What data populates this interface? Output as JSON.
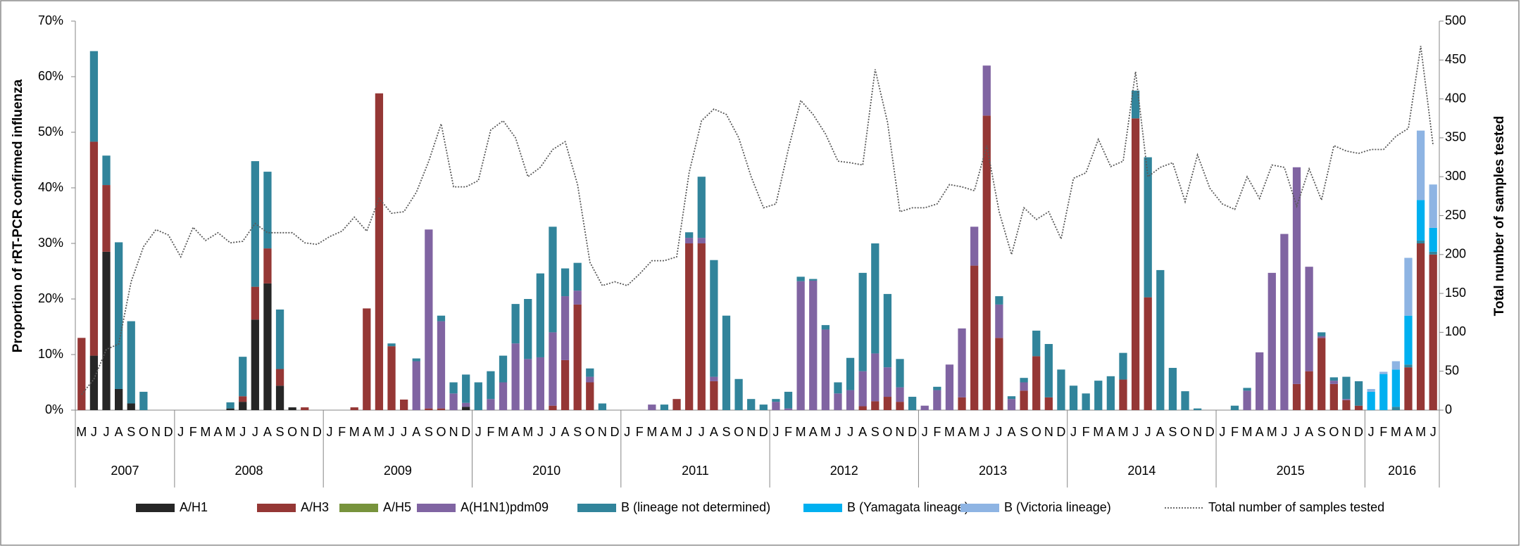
{
  "chart_data": {
    "type": "bar",
    "stacked": true,
    "ylabel": "Proportion of rRT-PCR confirmed influenza",
    "y2label": "Total number of samples tested",
    "ylim": [
      0,
      70
    ],
    "yticks": [
      {
        "value": 0,
        "label": "0%"
      },
      {
        "value": 10,
        "label": "10%"
      },
      {
        "value": 20,
        "label": "20%"
      },
      {
        "value": 30,
        "label": "30%"
      },
      {
        "value": 40,
        "label": "40%"
      },
      {
        "value": 50,
        "label": "50%"
      },
      {
        "value": 60,
        "label": "60%"
      },
      {
        "value": 70,
        "label": "70%"
      }
    ],
    "y2lim": [
      0,
      500
    ],
    "y2ticks": [
      0,
      50,
      100,
      150,
      200,
      250,
      300,
      350,
      400,
      450,
      500
    ],
    "legend": "bottom",
    "categories": [
      "M",
      "J",
      "J",
      "A",
      "S",
      "O",
      "N",
      "D",
      "J",
      "F",
      "M",
      "A",
      "M",
      "J",
      "J",
      "A",
      "S",
      "O",
      "N",
      "D",
      "J",
      "F",
      "M",
      "A",
      "M",
      "J",
      "J",
      "A",
      "S",
      "O",
      "N",
      "D",
      "J",
      "F",
      "M",
      "A",
      "M",
      "J",
      "J",
      "A",
      "S",
      "O",
      "N",
      "D",
      "J",
      "F",
      "M",
      "A",
      "M",
      "J",
      "J",
      "A",
      "S",
      "O",
      "N",
      "D",
      "J",
      "F",
      "M",
      "A",
      "M",
      "J",
      "J",
      "A",
      "S",
      "O",
      "N",
      "D",
      "J",
      "F",
      "M",
      "A",
      "M",
      "J",
      "J",
      "A",
      "S",
      "O",
      "N",
      "D",
      "J",
      "F",
      "M",
      "A",
      "M",
      "J",
      "J",
      "A",
      "S",
      "O",
      "N",
      "D",
      "J",
      "F",
      "M",
      "A",
      "M",
      "J",
      "J",
      "A",
      "S",
      "O",
      "N",
      "D",
      "J",
      "F",
      "M",
      "A",
      "M",
      "J"
    ],
    "year_labels": [
      {
        "label": "2007",
        "months": 8
      },
      {
        "label": "2008",
        "months": 12
      },
      {
        "label": "2009",
        "months": 12
      },
      {
        "label": "2010",
        "months": 12
      },
      {
        "label": "2011",
        "months": 12
      },
      {
        "label": "2012",
        "months": 12
      },
      {
        "label": "2013",
        "months": 12
      },
      {
        "label": "2014",
        "months": 12
      },
      {
        "label": "2015",
        "months": 12
      },
      {
        "label": "2016",
        "months": 6
      }
    ],
    "series": [
      {
        "name": "A/H1",
        "color": "#262626",
        "values": [
          0,
          9.8,
          28.5,
          3.8,
          1.2,
          0,
          0,
          0,
          0,
          0,
          0,
          0,
          0.3,
          1.5,
          16.3,
          22.8,
          4.4,
          0.5,
          0,
          0,
          0,
          0,
          0,
          0,
          0,
          0,
          0,
          0,
          0,
          0,
          0,
          0.6,
          0,
          0,
          0,
          0,
          0,
          0,
          0,
          0,
          0,
          0,
          0,
          0,
          0,
          0,
          0,
          0,
          0,
          0,
          0,
          0,
          0,
          0,
          0,
          0,
          0,
          0,
          0,
          0,
          0,
          0,
          0,
          0,
          0,
          0,
          0,
          0,
          0,
          0,
          0,
          0,
          0,
          0,
          0,
          0,
          0,
          0,
          0,
          0,
          0,
          0,
          0,
          0,
          0,
          0,
          0,
          0,
          0,
          0,
          0,
          0,
          0,
          0,
          0,
          0,
          0,
          0,
          0,
          0,
          0,
          0,
          0,
          0,
          0,
          0,
          0,
          0,
          0,
          0
        ]
      },
      {
        "name": "A/H3",
        "color": "#953735",
        "values": [
          13,
          38.5,
          12,
          0,
          0,
          0,
          0,
          0,
          0,
          0,
          0,
          0,
          0,
          1,
          5.9,
          6.3,
          3,
          0,
          0.5,
          0,
          0,
          0,
          0.5,
          18.3,
          57,
          11.5,
          1.9,
          0,
          0.3,
          0.3,
          0,
          0,
          0,
          0,
          0,
          0,
          0,
          0,
          0.8,
          9,
          19,
          5,
          0,
          0,
          0,
          0,
          0,
          0,
          2,
          30,
          30,
          5.2,
          0,
          0,
          0,
          0,
          0,
          0,
          0,
          0,
          0,
          0,
          0,
          0.7,
          1.6,
          2.4,
          1.5,
          0,
          0,
          0,
          0,
          2.3,
          26,
          53,
          13,
          0,
          3.5,
          9.7,
          2.3,
          0,
          0,
          0,
          0,
          0,
          5.5,
          52.5,
          20.3,
          0,
          0,
          0,
          0,
          0,
          0,
          0,
          0,
          0,
          0,
          0,
          4.7,
          7,
          13,
          4.7,
          1.8,
          0.8,
          0,
          0,
          0,
          7.7,
          30,
          28
        ]
      },
      {
        "name": "A/H5",
        "color": "#77933c",
        "values": [
          0,
          0,
          0,
          0,
          0,
          0,
          0,
          0,
          0,
          0,
          0,
          0,
          0,
          0,
          0,
          0,
          0,
          0,
          0,
          0,
          0,
          0,
          0,
          0,
          0,
          0,
          0,
          0,
          0,
          0,
          0,
          0,
          0,
          0,
          0,
          0,
          0,
          0,
          0,
          0,
          0,
          0,
          0,
          0,
          0,
          0,
          0,
          0,
          0,
          0,
          0,
          0,
          0,
          0,
          0,
          0,
          0,
          0,
          0,
          0,
          0,
          0,
          0,
          0,
          0,
          0,
          0,
          0,
          0,
          0,
          0,
          0,
          0,
          0,
          0,
          0,
          0,
          0,
          0,
          0,
          0,
          0,
          0,
          0,
          0,
          0,
          0,
          0,
          0,
          0,
          0,
          0,
          0,
          0,
          0,
          0,
          0,
          0,
          0,
          0,
          0,
          0,
          0,
          0,
          0,
          0,
          0,
          0,
          0,
          0
        ]
      },
      {
        "name": "A(H1N1)pdm09",
        "color": "#8064a2",
        "values": [
          0,
          0,
          0,
          0,
          0,
          0,
          0,
          0,
          0,
          0,
          0,
          0,
          0,
          0,
          0,
          0,
          0,
          0,
          0,
          0,
          0,
          0,
          0,
          0,
          0,
          0,
          0,
          8.8,
          32.2,
          15.7,
          3,
          0.7,
          0,
          2,
          5,
          12,
          9.2,
          9.5,
          13.2,
          11.5,
          2.5,
          1,
          0,
          0,
          0,
          0,
          1,
          0,
          0,
          1,
          1,
          0.8,
          0,
          0,
          0,
          0,
          1.5,
          0.3,
          23.2,
          23.3,
          14.5,
          3,
          3.6,
          6.3,
          8.6,
          5.3,
          2.6,
          0,
          0.8,
          3.6,
          8.2,
          12.4,
          7,
          9,
          6,
          2,
          1.5,
          0,
          0,
          0,
          0,
          0,
          0,
          0,
          0,
          0,
          0,
          0,
          0,
          0,
          0,
          0,
          0,
          0,
          3.5,
          10.4,
          24.7,
          31.7,
          39,
          18.8,
          0.3,
          0.6,
          0.2,
          0,
          0,
          0,
          0,
          0,
          0,
          0
        ]
      },
      {
        "name": "B (lineage not determined)",
        "color": "#31849b",
        "values": [
          0,
          16.3,
          5.3,
          26.4,
          14.8,
          3.3,
          0,
          0,
          0,
          0,
          0,
          0,
          1.1,
          7.1,
          22.6,
          13.8,
          10.7,
          0,
          0,
          0,
          0,
          0,
          0,
          0,
          0,
          0.5,
          0,
          0.5,
          0,
          1,
          2,
          5.1,
          5,
          5,
          4.8,
          7.1,
          10.8,
          15.1,
          19,
          5,
          5,
          1.5,
          1.2,
          0,
          0,
          0,
          0,
          1,
          0,
          1,
          11,
          21,
          17,
          5.6,
          2,
          1,
          0.5,
          3,
          0.8,
          0.3,
          0.8,
          2,
          5.8,
          17.7,
          19.8,
          13.2,
          5.1,
          2.4,
          0,
          0.6,
          0,
          0,
          0,
          0,
          1.5,
          0.5,
          0.8,
          4.6,
          9.6,
          7.3,
          4.4,
          3,
          5.3,
          6.1,
          4.8,
          5,
          25.2,
          25.2,
          7.6,
          3.4,
          0.3,
          0,
          0,
          0.8,
          0.5,
          0,
          0,
          0,
          0,
          0,
          0.7,
          0.6,
          4,
          4.4,
          0,
          0,
          0.6,
          0.5,
          0.5,
          0.5
        ]
      },
      {
        "name": "B (Yamagata lineage)",
        "color": "#00b0f0",
        "values": [
          0,
          0,
          0,
          0,
          0,
          0,
          0,
          0,
          0,
          0,
          0,
          0,
          0,
          0,
          0,
          0,
          0,
          0,
          0,
          0,
          0,
          0,
          0,
          0,
          0,
          0,
          0,
          0,
          0,
          0,
          0,
          0,
          0,
          0,
          0,
          0,
          0,
          0,
          0,
          0,
          0,
          0,
          0,
          0,
          0,
          0,
          0,
          0,
          0,
          0,
          0,
          0,
          0,
          0,
          0,
          0,
          0,
          0,
          0,
          0,
          0,
          0,
          0,
          0,
          0,
          0,
          0,
          0,
          0,
          0,
          0,
          0,
          0,
          0,
          0,
          0,
          0,
          0,
          0,
          0,
          0,
          0,
          0,
          0,
          0,
          0,
          0,
          0,
          0,
          0,
          0,
          0,
          0,
          0,
          0,
          0,
          0,
          0,
          0,
          0,
          0,
          0,
          0,
          0,
          3.3,
          6.5,
          6.7,
          8.8,
          7.3,
          4.3
        ]
      },
      {
        "name": "B (Victoria lineage)",
        "color": "#8eb4e3",
        "values": [
          0,
          0,
          0,
          0,
          0,
          0,
          0,
          0,
          0,
          0,
          0,
          0,
          0,
          0,
          0,
          0,
          0,
          0,
          0,
          0,
          0,
          0,
          0,
          0,
          0,
          0,
          0,
          0,
          0,
          0,
          0,
          0,
          0,
          0,
          0,
          0,
          0,
          0,
          0,
          0,
          0,
          0,
          0,
          0,
          0,
          0,
          0,
          0,
          0,
          0,
          0,
          0,
          0,
          0,
          0,
          0,
          0,
          0,
          0,
          0,
          0,
          0,
          0,
          0,
          0,
          0,
          0,
          0,
          0,
          0,
          0,
          0,
          0,
          0,
          0,
          0,
          0,
          0,
          0,
          0,
          0,
          0,
          0,
          0,
          0,
          0,
          0,
          0,
          0,
          0,
          0,
          0,
          0,
          0,
          0,
          0,
          0,
          0,
          0,
          0,
          0,
          0,
          0,
          0,
          0.5,
          0.4,
          1.5,
          10.4,
          12.5,
          7.8
        ]
      },
      {
        "name": "Total number of samples tested",
        "type": "line",
        "axis": "y2",
        "color": "#595959",
        "values": [
          20,
          40,
          78,
          85,
          165,
          210,
          232,
          225,
          197,
          235,
          218,
          228,
          215,
          217,
          240,
          228,
          228,
          228,
          215,
          213,
          223,
          230,
          248,
          230,
          272,
          253,
          255,
          280,
          320,
          368,
          287,
          287,
          295,
          360,
          372,
          350,
          300,
          312,
          335,
          345,
          290,
          190,
          160,
          165,
          160,
          175,
          192,
          192,
          197,
          305,
          372,
          387,
          380,
          350,
          300,
          260,
          265,
          335,
          398,
          380,
          355,
          320,
          318,
          315,
          438,
          370,
          255,
          260,
          260,
          265,
          290,
          287,
          282,
          340,
          255,
          200,
          260,
          245,
          255,
          220,
          298,
          305,
          348,
          313,
          320,
          435,
          300,
          312,
          318,
          268,
          328,
          285,
          265,
          258,
          300,
          272,
          315,
          312,
          262,
          310,
          270,
          340,
          333,
          330,
          335,
          335,
          352,
          362,
          468,
          340
        ]
      }
    ]
  }
}
